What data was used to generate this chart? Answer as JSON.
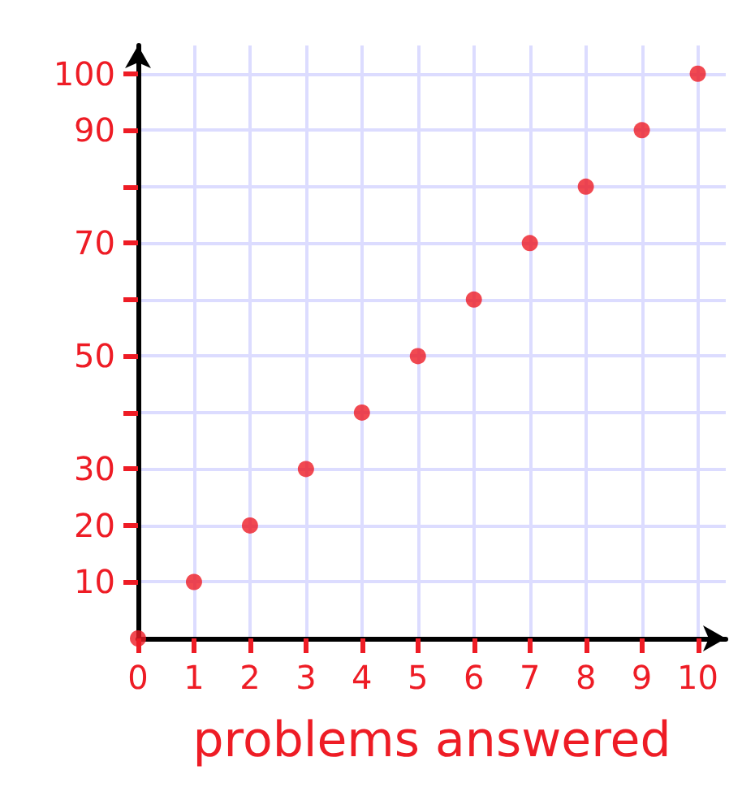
{
  "chart_data": {
    "type": "scatter",
    "xlabel": "problems answered",
    "x": [
      0,
      1,
      2,
      3,
      4,
      5,
      6,
      7,
      8,
      9,
      10
    ],
    "series": [
      {
        "color": "#ee1c25",
        "values": [
          0,
          10,
          20,
          30,
          40,
          50,
          60,
          70,
          80,
          90,
          100
        ]
      }
    ],
    "xlim": [
      0,
      10.5
    ],
    "ylim": [
      0,
      105
    ],
    "xticks": [
      0,
      1,
      2,
      3,
      4,
      5,
      6,
      7,
      8,
      9,
      10
    ],
    "yticks": [
      10,
      20,
      30,
      {
        "value": 40,
        "label": null
      },
      50,
      {
        "value": 60,
        "label": null
      },
      70,
      {
        "value": 80,
        "label": null
      },
      90,
      100
    ],
    "grid": true,
    "marker": "circle"
  }
}
